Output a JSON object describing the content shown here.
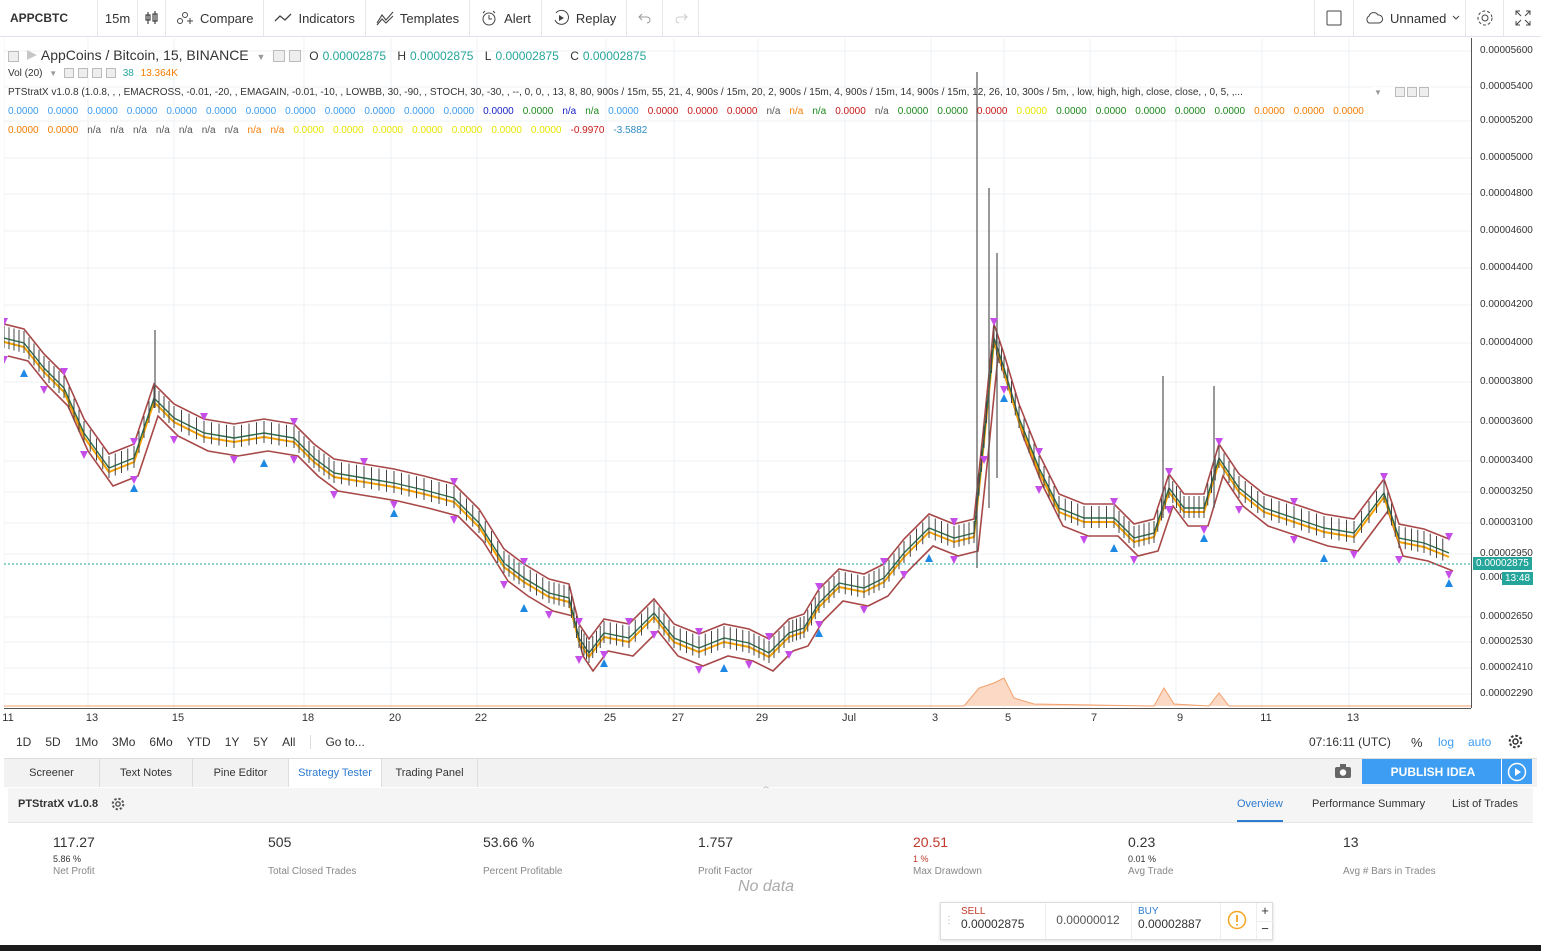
{
  "toolbar": {
    "symbol": "APPCBTC",
    "interval": "15m",
    "compare": "Compare",
    "indicators": "Indicators",
    "templates": "Templates",
    "alert": "Alert",
    "replay": "Replay",
    "layout_name": "Unnamed"
  },
  "legend": {
    "title": "AppCoins / Bitcoin, 15, BINANCE",
    "o_label": "O",
    "o_val": "0.00002875",
    "h_label": "H",
    "h_val": "0.00002875",
    "l_label": "L",
    "l_val": "0.00002875",
    "c_label": "C",
    "c_val": "0.00002875",
    "vol_label": "Vol (20)",
    "vol_v1": "38",
    "vol_v2": "13.364K",
    "strat_line": "PTStratX v1.0.8 (1.0.8, , , EMACROSS, -0.01, -20, , EMAGAIN, -0.01, -10, , LOWBB, 30, -90, , STOCH, 30, -30, , --, 0, 0, , 13, 8, 80, 900s / 15m, 55, 21, 4, 900s / 15m, 20, 2, 900s / 15m, 4, 900s / 15m, 14, 900s / 15m, 12, 26, 10, 300s / 5m, , low, high, high, close, close, , 0, 5, ,...",
    "row1": [
      {
        "t": "0.0000",
        "c": "#3c9df2"
      },
      {
        "t": "0.0000",
        "c": "#3c9df2"
      },
      {
        "t": "0.0000",
        "c": "#3c9df2"
      },
      {
        "t": "0.0000",
        "c": "#3c9df2"
      },
      {
        "t": "0.0000",
        "c": "#3c9df2"
      },
      {
        "t": "0.0000",
        "c": "#3c9df2"
      },
      {
        "t": "0.0000",
        "c": "#3c9df2"
      },
      {
        "t": "0.0000",
        "c": "#3c9df2"
      },
      {
        "t": "0.0000",
        "c": "#3c9df2"
      },
      {
        "t": "0.0000",
        "c": "#3c9df2"
      },
      {
        "t": "0.0000",
        "c": "#3c9df2"
      },
      {
        "t": "0.0000",
        "c": "#3c9df2"
      },
      {
        "t": "0.0000",
        "c": "#1a24c8"
      },
      {
        "t": "0.0000",
        "c": "#1d8a1d"
      },
      {
        "t": "n/a",
        "c": "#1a24c8"
      },
      {
        "t": "n/a",
        "c": "#1d8a1d"
      },
      {
        "t": "0.0000",
        "c": "#3c9df2"
      },
      {
        "t": "0.0000",
        "c": "#c81a1a"
      },
      {
        "t": "0.0000",
        "c": "#c81a1a"
      },
      {
        "t": "0.0000",
        "c": "#c81a1a"
      },
      {
        "t": "n/a",
        "c": "#555"
      },
      {
        "t": "n/a",
        "c": "#f57c00"
      },
      {
        "t": "n/a",
        "c": "#1d8a1d"
      },
      {
        "t": "0.0000",
        "c": "#c81a1a"
      },
      {
        "t": "n/a",
        "c": "#555"
      },
      {
        "t": "0.0000",
        "c": "#1d8a1d"
      },
      {
        "t": "0.0000",
        "c": "#1d8a1d"
      },
      {
        "t": "0.0000",
        "c": "#c81a1a"
      },
      {
        "t": "0.0000",
        "c": "#e6e600"
      },
      {
        "t": "0.0000",
        "c": "#1d8a1d"
      },
      {
        "t": "0.0000",
        "c": "#1d8a1d"
      },
      {
        "t": "0.0000",
        "c": "#1d8a1d"
      },
      {
        "t": "0.0000",
        "c": "#1d8a1d"
      },
      {
        "t": "0.0000",
        "c": "#1d8a1d"
      },
      {
        "t": "0.0000",
        "c": "#f57c00"
      },
      {
        "t": "0.0000",
        "c": "#f57c00"
      },
      {
        "t": "0.0000",
        "c": "#f57c00"
      }
    ],
    "row2": [
      {
        "t": "0.0000",
        "c": "#f57c00"
      },
      {
        "t": "0.0000",
        "c": "#f57c00"
      },
      {
        "t": "n/a",
        "c": "#555"
      },
      {
        "t": "n/a",
        "c": "#555"
      },
      {
        "t": "n/a",
        "c": "#555"
      },
      {
        "t": "n/a",
        "c": "#555"
      },
      {
        "t": "n/a",
        "c": "#555"
      },
      {
        "t": "n/a",
        "c": "#555"
      },
      {
        "t": "n/a",
        "c": "#555"
      },
      {
        "t": "n/a",
        "c": "#f57c00"
      },
      {
        "t": "n/a",
        "c": "#f57c00"
      },
      {
        "t": "0.0000",
        "c": "#e6e600"
      },
      {
        "t": "0.0000",
        "c": "#e6e600"
      },
      {
        "t": "0.0000",
        "c": "#e6e600"
      },
      {
        "t": "0.0000",
        "c": "#e6e600"
      },
      {
        "t": "0.0000",
        "c": "#e6e600"
      },
      {
        "t": "0.0000",
        "c": "#e6e600"
      },
      {
        "t": "0.0000",
        "c": "#e6e600"
      },
      {
        "t": "-0.9970",
        "c": "#c81a1a"
      },
      {
        "t": "-3.5882",
        "c": "#2e8bc0"
      }
    ]
  },
  "price_axis": {
    "ticks": [
      "0.00005600",
      "0.00005400",
      "0.00005200",
      "0.00005000",
      "0.00004800",
      "0.00004600",
      "0.00004400",
      "0.00004200",
      "0.00004000",
      "0.00003800",
      "0.00003600",
      "0.00003400",
      "0.00003250",
      "0.00003100",
      "0.00002950",
      "0.00002650",
      "0.00002530",
      "0.00002410",
      "0.00002290"
    ],
    "last_price": "0.00002875",
    "countdown_prefix": "0.000",
    "countdown": "13:48"
  },
  "time_axis": {
    "ticks": [
      "11",
      "13",
      "15",
      "18",
      "20",
      "22",
      "25",
      "27",
      "29",
      "Jul",
      "3",
      "5",
      "7",
      "9",
      "11",
      "13"
    ]
  },
  "range_bar": {
    "ranges": [
      "1D",
      "5D",
      "1Mo",
      "3Mo",
      "6Mo",
      "YTD",
      "1Y",
      "5Y",
      "All"
    ],
    "goto": "Go to...",
    "clock": "07:16:11 (UTC)",
    "percent": "%",
    "log": "log",
    "auto": "auto"
  },
  "bottom_tabs": [
    "Screener",
    "Text Notes",
    "Pine Editor",
    "Strategy Tester",
    "Trading Panel"
  ],
  "publish": "PUBLISH IDEA",
  "strategy": {
    "name": "PTStratX v1.0.8",
    "tabs": [
      "Overview",
      "Performance Summary",
      "List of Trades"
    ],
    "metrics": [
      {
        "value": "117.27",
        "pct": "5.86 %",
        "label": "Net Profit",
        "color": "#333"
      },
      {
        "value": "505",
        "pct": "",
        "label": "Total Closed Trades",
        "color": "#333"
      },
      {
        "value": "53.66 %",
        "pct": "",
        "label": "Percent Profitable",
        "color": "#333"
      },
      {
        "value": "1.757",
        "pct": "",
        "label": "Profit Factor",
        "color": "#333"
      },
      {
        "value": "20.51",
        "pct": "1 %",
        "label": "Max Drawdown",
        "color": "#c0392b"
      },
      {
        "value": "0.23",
        "pct": "0.01 %",
        "label": "Avg Trade",
        "color": "#333"
      },
      {
        "value": "13",
        "pct": "",
        "label": "Avg # Bars in Trades",
        "color": "#333"
      }
    ],
    "no_data": "No data"
  },
  "trade": {
    "sell_label": "SELL",
    "sell_price": "0.00002875",
    "spread": "0.00000012",
    "buy_label": "BUY",
    "buy_price": "0.00002887"
  },
  "colors": {
    "accent": "#3c9df2",
    "price_line": "#26a69a",
    "upper_band": "#a84848",
    "candle": "#444",
    "signal_pink": "#c64ee8",
    "signal_blue": "#1e88e5"
  }
}
